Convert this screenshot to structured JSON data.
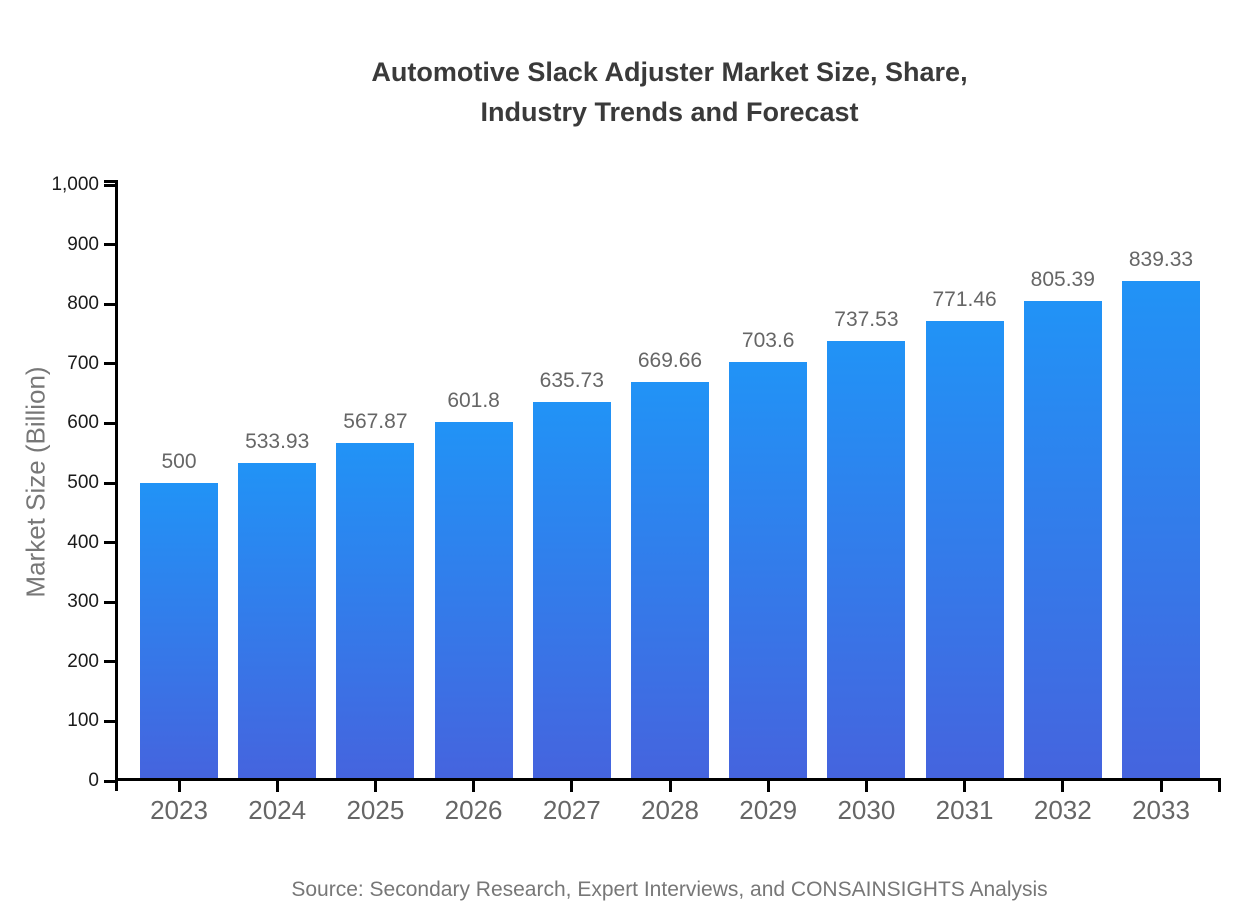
{
  "page": {
    "background_color": "#ffffff"
  },
  "title": "Automotive Slack Adjuster Market Size, Share,\nIndustry Trends and Forecast",
  "source_note": "Source: Secondary Research, Expert Interviews, and CONSAINSIGHTS Analysis",
  "chart_data": {
    "type": "bar",
    "title": "Automotive Slack Adjuster Market Size, Share, Industry Trends and Forecast",
    "xlabel": "",
    "ylabel": "Market Size (Billion)",
    "categories": [
      "2023",
      "2024",
      "2025",
      "2026",
      "2027",
      "2028",
      "2029",
      "2030",
      "2031",
      "2032",
      "2033"
    ],
    "values": [
      500,
      533.93,
      567.87,
      601.8,
      635.73,
      669.66,
      703.6,
      737.53,
      771.46,
      805.39,
      839.33
    ],
    "value_labels": [
      "500",
      "533.93",
      "567.87",
      "601.8",
      "635.73",
      "669.66",
      "703.6",
      "737.53",
      "771.46",
      "805.39",
      "839.33"
    ],
    "ylim": [
      0,
      1000
    ],
    "ytick_values": [
      0,
      100,
      200,
      300,
      400,
      500,
      600,
      700,
      800,
      900,
      1000
    ],
    "ytick_labels": [
      "0",
      "100",
      "200",
      "300",
      "400",
      "500",
      "600",
      "700",
      "800",
      "900",
      "1,000"
    ],
    "grid": false,
    "legend": "none",
    "bar_orientation": "vertical",
    "colors": {
      "bar_gradient_top": "#2193F6",
      "bar_gradient_bottom": "#4564DE",
      "axis": "#000000",
      "ytick_label": "#1b1b1b",
      "xtick_label": "#666666",
      "value_label": "#666666",
      "title": "#3a3a3a",
      "muted_text": "#777777"
    }
  }
}
